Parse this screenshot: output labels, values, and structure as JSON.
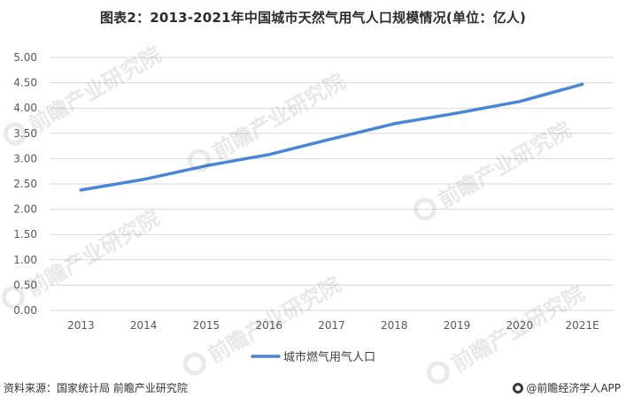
{
  "title": "图表2：2013-2021年中国城市天然气用气人口规模情况(单位：亿人)",
  "footer": {
    "source": "资料来源：国家统计局 前瞻产业研究院",
    "brand": "@前瞻经济学人APP"
  },
  "watermark": {
    "text": "前瞻产业研究院",
    "logo": "qianzhan-circle-logo"
  },
  "colors": {
    "series": "#4a86d6",
    "grid": "#d9d9d9",
    "axis_text": "#595959"
  },
  "chart_data": {
    "type": "line",
    "title": "图表2：2013-2021年中国城市天然气用气人口规模情况(单位：亿人)",
    "xlabel": "",
    "ylabel": "",
    "categories": [
      "2013",
      "2014",
      "2015",
      "2016",
      "2017",
      "2018",
      "2019",
      "2020",
      "2021E"
    ],
    "series": [
      {
        "name": "城市燃气用气人口",
        "values": [
          2.38,
          2.59,
          2.86,
          3.08,
          3.39,
          3.69,
          3.9,
          4.13,
          4.47
        ]
      }
    ],
    "ylim": [
      0,
      5
    ],
    "yticks": [
      "0.00",
      "0.50",
      "1.00",
      "1.50",
      "2.00",
      "2.50",
      "3.00",
      "3.50",
      "4.00",
      "4.50",
      "5.00"
    ],
    "grid": true,
    "legend": "bottom-center"
  }
}
